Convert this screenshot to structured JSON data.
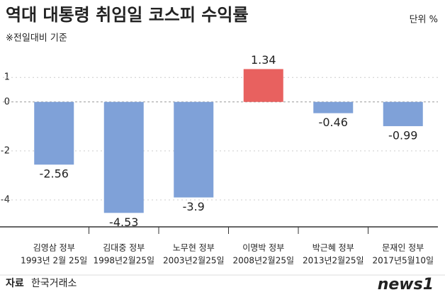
{
  "chart_data": {
    "type": "bar",
    "title": "역대 대통령 취임일 코스피 수익률",
    "unit": "단위 %",
    "subtitle": "※전일대비 기준",
    "categories": [
      "김영삼 정부",
      "김대중 정부",
      "노무현 정부",
      "이명박 정부",
      "박근혜 정부",
      "문재인 정부"
    ],
    "dates": [
      "1993년 2월 25일",
      "1998년2월25일",
      "2003년2월25일",
      "2008년2월25일",
      "2013년2월25일",
      "2017년5월10일"
    ],
    "values": [
      -2.56,
      -4.53,
      -3.9,
      1.34,
      -0.46,
      -0.99
    ],
    "colors": [
      "#7fa1d8",
      "#7fa1d8",
      "#7fa1d8",
      "#e8615f",
      "#7fa1d8",
      "#7fa1d8"
    ],
    "ylim": [
      -5.1,
      1.7
    ],
    "yticks": [
      1,
      0,
      -2,
      -4
    ],
    "source_label": "자료",
    "source": "한국거래소",
    "logo": "news1"
  }
}
